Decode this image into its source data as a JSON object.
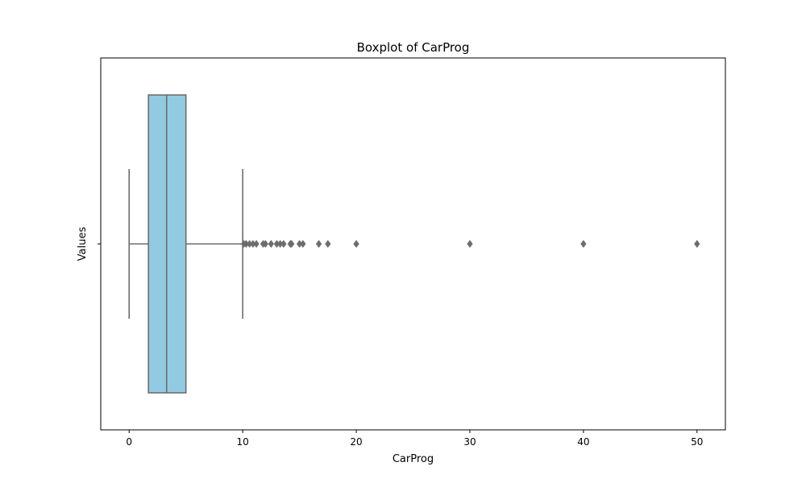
{
  "chart_data": {
    "type": "boxplot",
    "title": "Boxplot of CarProg",
    "xlabel": "CarProg",
    "ylabel": "Values",
    "xlim": [
      -2.5,
      52.5
    ],
    "x_ticks": [
      0,
      10,
      20,
      30,
      40,
      50
    ],
    "x_tick_labels": [
      "0",
      "10",
      "20",
      "30",
      "40",
      "50"
    ],
    "y_ticks": [
      ""
    ],
    "orientation": "horizontal",
    "grid": false,
    "box": {
      "min": 0,
      "q1": 1.7,
      "median": 3.3,
      "q3": 5.0,
      "max": 10.0,
      "fill_color": "#92cbe1",
      "line_color": "#6d6d6d"
    },
    "outliers": [
      10.1,
      10.3,
      10.6,
      10.9,
      11.2,
      11.8,
      12.0,
      12.5,
      13.0,
      13.3,
      13.6,
      14.2,
      14.3,
      15.0,
      15.3,
      16.7,
      17.5,
      20.0,
      30.0,
      40.0,
      50.0
    ]
  }
}
